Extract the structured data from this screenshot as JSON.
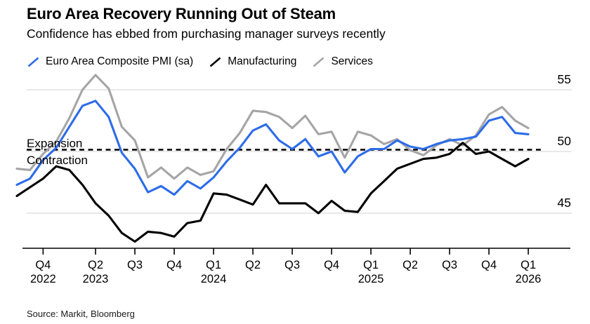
{
  "header": {
    "title": "Euro Area Recovery Running Out of Steam",
    "subtitle": "Confidence has ebbed from purchasing manager surveys recently"
  },
  "legend": [
    {
      "label": "Euro Area Composite PMI (sa)",
      "color": "#2d6ce9"
    },
    {
      "label": "Manufacturing",
      "color": "#000000"
    },
    {
      "label": "Services",
      "color": "#a5a5a5"
    }
  ],
  "annotations": {
    "expansion": "Expansion",
    "contraction": "Contraction"
  },
  "source": "Source: Markit, Bloomberg",
  "colors": {
    "composite": "#2d6ce9",
    "manufacturing": "#000000",
    "services": "#a5a5a5",
    "gridline": "#d9d9d9",
    "axis": "#000000",
    "threshold": "#000000"
  },
  "chart_data": {
    "type": "line",
    "title": "Euro Area Recovery Running Out of Steam",
    "subtitle": "Confidence has ebbed from purchasing manager surveys recently",
    "x_monthly": [
      "Oct 2022",
      "Nov 2022",
      "Dec 2022",
      "Jan 2023",
      "Feb 2023",
      "Mar 2023",
      "Apr 2023",
      "May 2023",
      "Jun 2023",
      "Jul 2023",
      "Aug 2023",
      "Sep 2023",
      "Oct 2023",
      "Nov 2023",
      "Dec 2023",
      "Jan 2024",
      "Feb 2024",
      "Mar 2024",
      "Apr 2024",
      "May 2024",
      "Jun 2024",
      "Jul 2024",
      "Aug 2024",
      "Sep 2024",
      "Oct 2024",
      "Nov 2024",
      "Dec 2024",
      "Jan 2025",
      "Feb 2025",
      "Mar 2025",
      "Apr 2025",
      "May 2025",
      "Jun 2025",
      "Jul 2025",
      "Aug 2025",
      "Sep 2025",
      "Oct 2025",
      "Nov 2025",
      "Dec 2025",
      "Jan 2026"
    ],
    "series": [
      {
        "name": "Euro Area Composite PMI (sa)",
        "color": "#2d6ce9",
        "values": [
          47.3,
          47.8,
          49.3,
          50.3,
          52.0,
          53.7,
          54.1,
          52.8,
          49.9,
          48.6,
          46.7,
          47.2,
          46.5,
          47.6,
          47.0,
          47.9,
          49.2,
          50.3,
          51.7,
          52.2,
          50.9,
          50.2,
          51.0,
          49.6,
          50.0,
          48.3,
          49.6,
          50.2,
          50.2,
          50.9,
          50.4,
          50.2,
          50.6,
          50.9,
          51.0,
          51.2,
          52.5,
          52.8,
          51.5,
          51.4
        ]
      },
      {
        "name": "Manufacturing",
        "color": "#000000",
        "values": [
          46.4,
          47.1,
          47.8,
          48.8,
          48.5,
          47.3,
          45.8,
          44.8,
          43.4,
          42.7,
          43.5,
          43.4,
          43.1,
          44.2,
          44.4,
          46.6,
          46.5,
          46.1,
          45.7,
          47.3,
          45.8,
          45.8,
          45.8,
          45.0,
          46.0,
          45.2,
          45.1,
          46.6,
          47.6,
          48.6,
          49.0,
          49.4,
          49.5,
          49.8,
          50.7,
          49.8,
          50.0,
          49.4,
          48.8,
          49.4
        ]
      },
      {
        "name": "Services",
        "color": "#a5a5a5",
        "values": [
          48.6,
          48.5,
          49.8,
          50.8,
          52.7,
          55.0,
          56.2,
          55.1,
          52.0,
          50.9,
          47.9,
          48.7,
          47.8,
          48.7,
          48.1,
          48.4,
          50.2,
          51.5,
          53.3,
          53.2,
          52.8,
          51.9,
          52.9,
          51.4,
          51.6,
          49.5,
          51.6,
          51.3,
          50.6,
          51.0,
          50.1,
          49.7,
          50.5,
          51.0,
          50.5,
          51.3,
          53.0,
          53.6,
          52.5,
          51.9
        ]
      }
    ],
    "y_axis": {
      "side": "right",
      "ticks": [
        55,
        50,
        45
      ],
      "ylim": [
        42.2,
        56.8
      ],
      "grid": true
    },
    "x_ticks": [
      {
        "month_index": 2,
        "quarter": "Q4",
        "year": "2022"
      },
      {
        "month_index": 6,
        "quarter": "Q2",
        "year": "2023"
      },
      {
        "month_index": 9,
        "quarter": "Q3",
        "year": ""
      },
      {
        "month_index": 12,
        "quarter": "Q4",
        "year": ""
      },
      {
        "month_index": 15,
        "quarter": "Q1",
        "year": "2024"
      },
      {
        "month_index": 18,
        "quarter": "Q2",
        "year": ""
      },
      {
        "month_index": 21,
        "quarter": "Q3",
        "year": ""
      },
      {
        "month_index": 24,
        "quarter": "Q4",
        "year": ""
      },
      {
        "month_index": 27,
        "quarter": "Q1",
        "year": "2025"
      },
      {
        "month_index": 30,
        "quarter": "Q2",
        "year": ""
      },
      {
        "month_index": 33,
        "quarter": "Q3",
        "year": ""
      },
      {
        "month_index": 36,
        "quarter": "Q4",
        "year": ""
      },
      {
        "month_index": 39,
        "quarter": "Q1",
        "year": "2026"
      }
    ],
    "threshold": {
      "value": 50,
      "style": "dashed",
      "label_above": "Expansion",
      "label_below": "Contraction"
    },
    "legend_position": "top"
  }
}
